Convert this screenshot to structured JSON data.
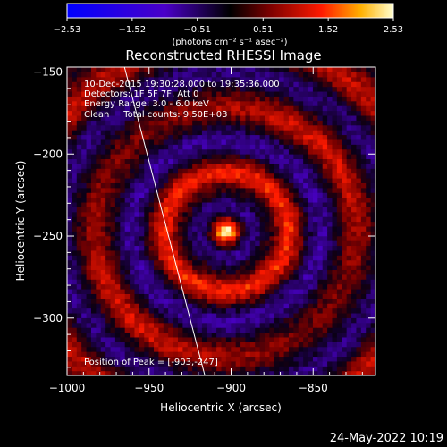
{
  "chart_data": {
    "type": "heatmap",
    "title": "Reconstructed RHESSI Image",
    "xlabel": "Heliocentric X (arcsec)",
    "ylabel": "Heliocentric Y (arcsec)",
    "xlim": [
      -1000,
      -812
    ],
    "ylim": [
      -335,
      -147
    ],
    "xticks": [
      -1000,
      -950,
      -900,
      -850
    ],
    "xtick_labels": [
      "−1000",
      "−950",
      "−900",
      "−850"
    ],
    "yticks": [
      -150,
      -200,
      -250,
      -300
    ],
    "ytick_labels": [
      "−150",
      "−200",
      "−250",
      "−300"
    ],
    "colorbar": {
      "range": [
        -2.53,
        2.53
      ],
      "ticks": [
        -2.53,
        -1.52,
        -0.51,
        0.51,
        1.52,
        2.53
      ],
      "tick_labels": [
        "−2.53",
        "−1.52",
        "−0.51",
        "0.51",
        "1.52",
        "2.53"
      ],
      "units_label": "(photons cm⁻² s⁻¹ asec⁻²)"
    },
    "peak": {
      "x": -903,
      "y": -247
    },
    "limb_line": {
      "x1": -965,
      "y1": -147,
      "x2": -916,
      "y2": -335
    },
    "annotations": [
      "10-Dec-2015 19:30:28.000 to 19:35:36.000",
      "Detectors: 1F 5F 7F, Att 0",
      "Energy Range: 3.0 - 6.0 keV",
      "Clean     Total counts: 9.50E+03"
    ],
    "peak_label": "Position of Peak = [-903,-247]"
  },
  "footer": {
    "date_stamp": "24-May-2022 10:19"
  },
  "colors": {
    "background": "#000000",
    "foreground": "#ffffff",
    "limb_line": "#ffffff"
  }
}
